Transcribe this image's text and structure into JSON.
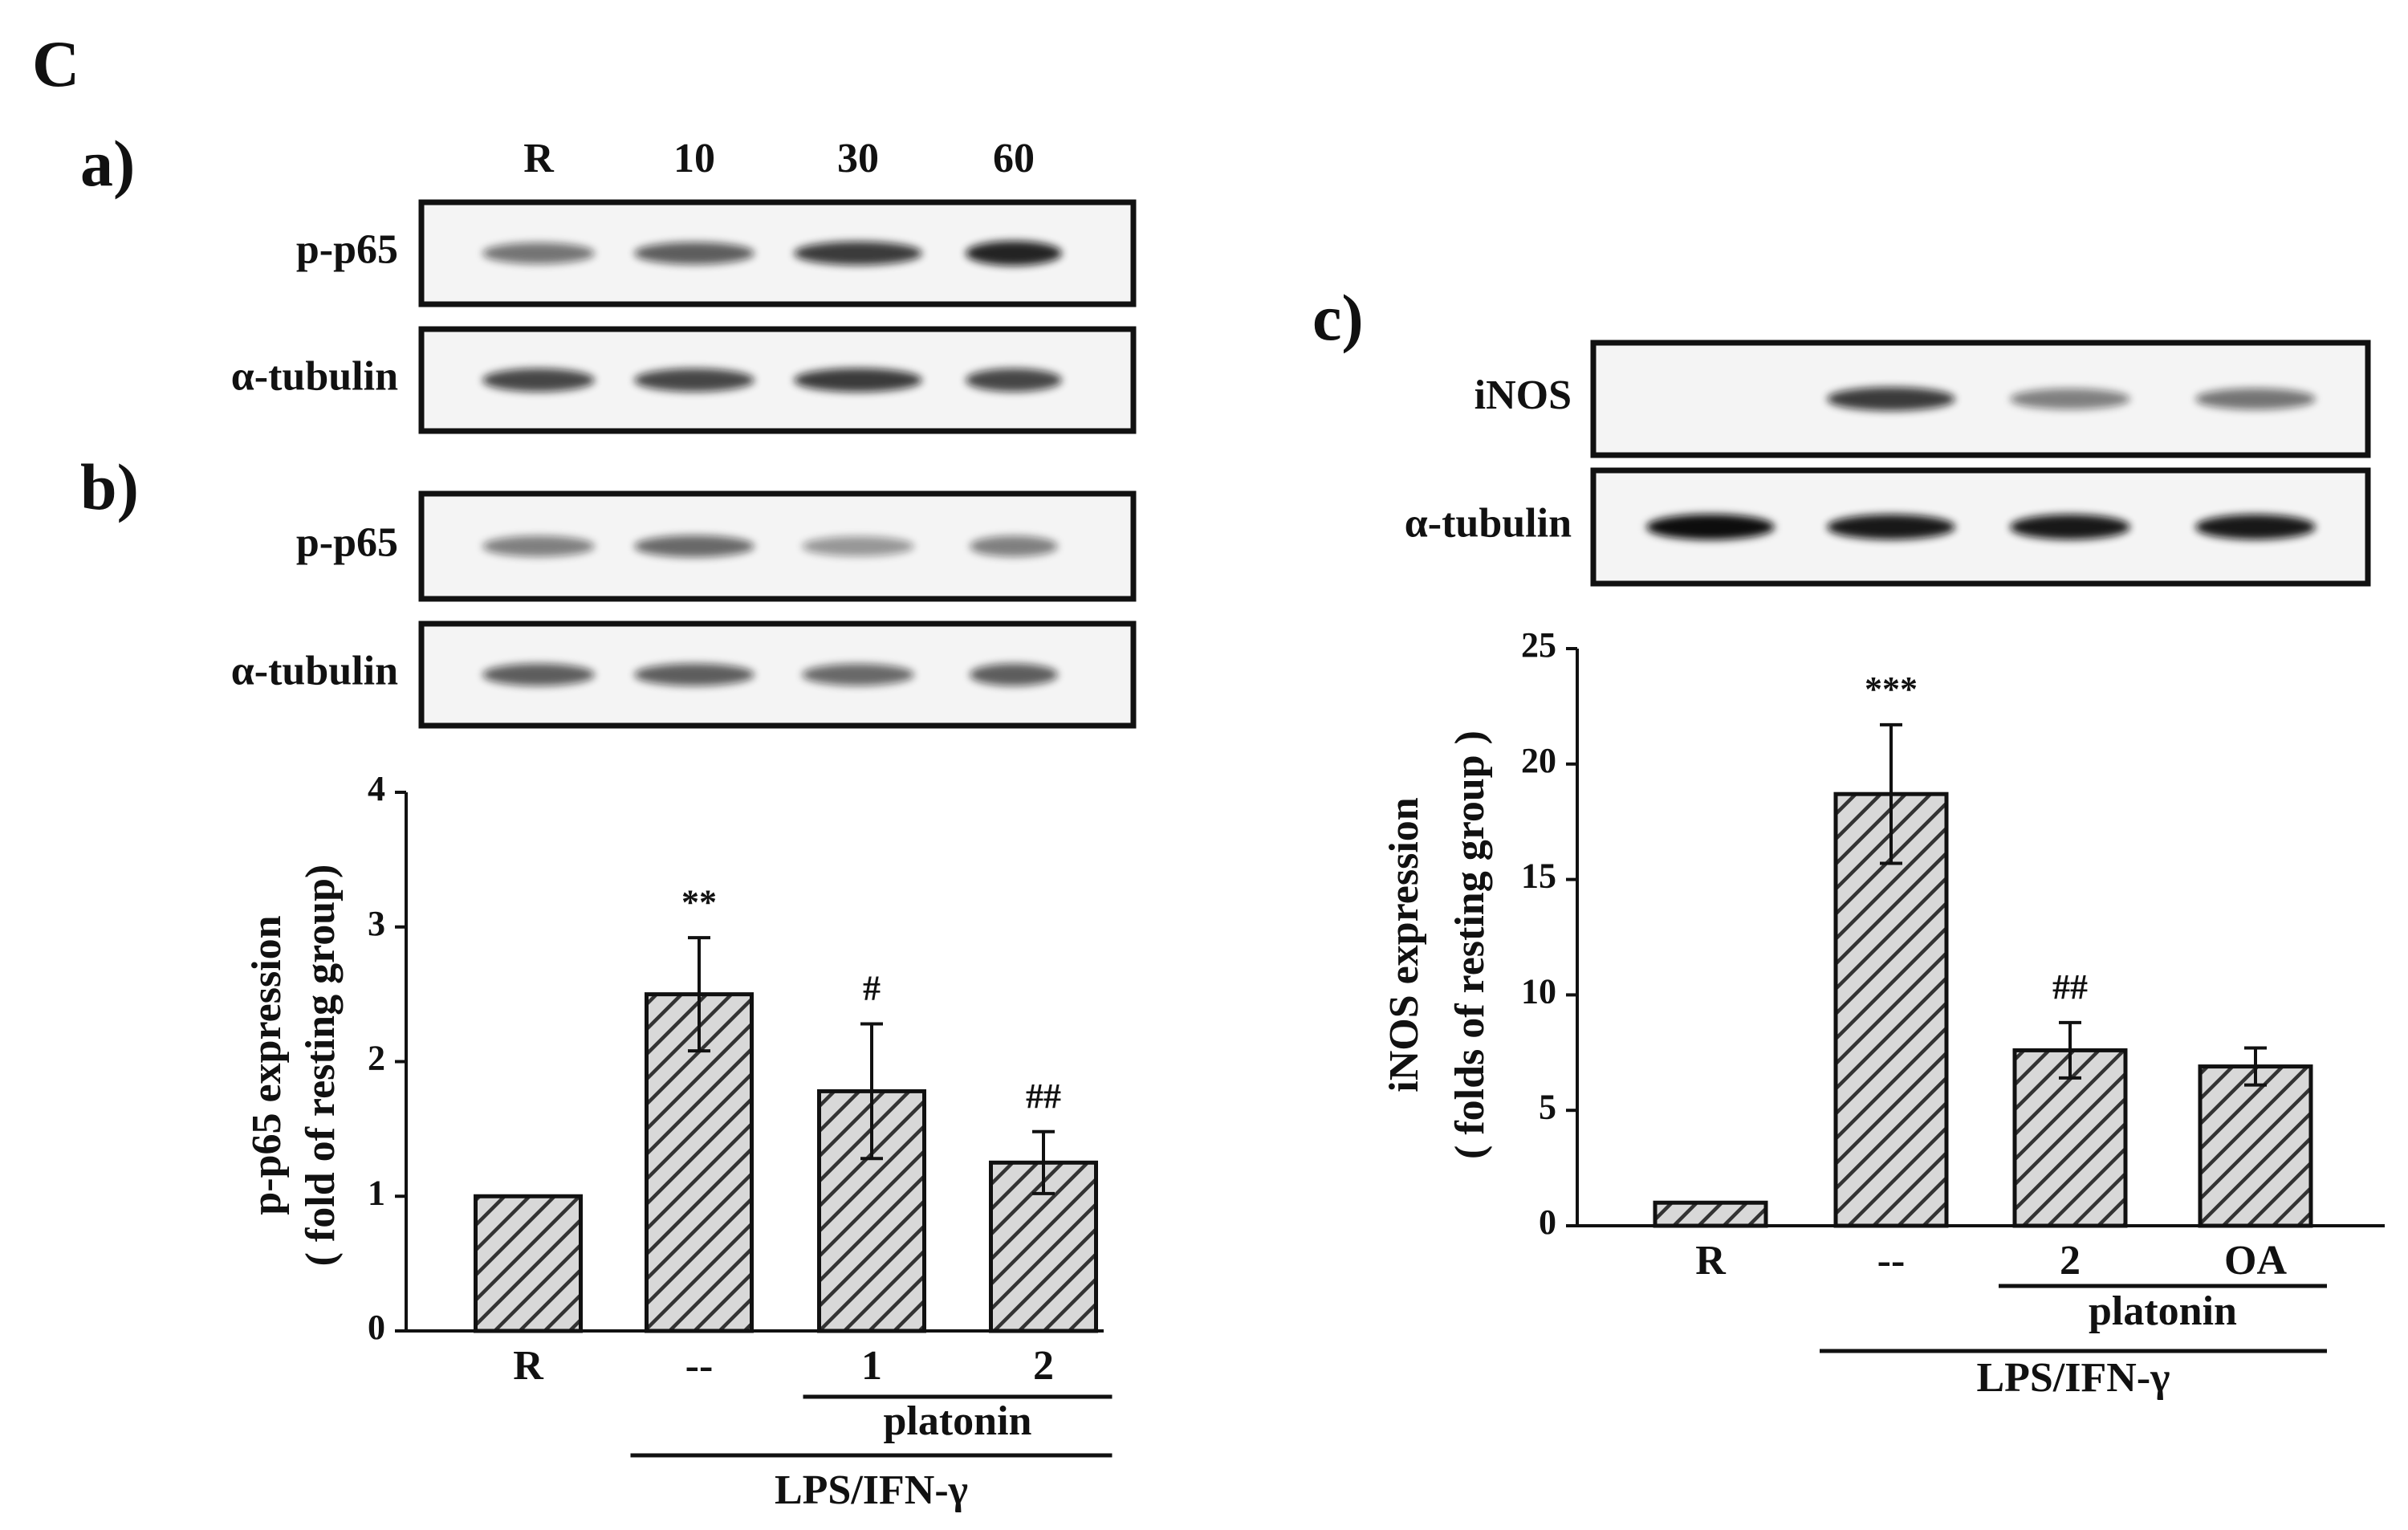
{
  "panel_label": "C",
  "blots": [
    {
      "label": "a)",
      "lanes": [
        "R",
        "10",
        "30",
        "60"
      ],
      "rows": [
        "p-p65",
        "α-tubulin"
      ]
    },
    {
      "label": "b)",
      "rows": [
        "p-p65",
        "α-tubulin"
      ]
    },
    {
      "label": "c)",
      "rows": [
        "iNOS",
        "α-tubulin"
      ]
    }
  ],
  "chart_data": [
    {
      "type": "bar",
      "ylabel": [
        "p-p65 expression",
        "( fold of resting group)"
      ],
      "categories": [
        "R",
        "--",
        "1",
        "2"
      ],
      "values": [
        1,
        2.5,
        1.78,
        1.25
      ],
      "errors": [
        null,
        0.42,
        0.5,
        0.23
      ],
      "annotations": [
        null,
        "**",
        "#",
        "##"
      ],
      "groups": [
        "platonin",
        "LPS/IFN-γ"
      ],
      "color": "#333333",
      "ylim": [
        0,
        4
      ],
      "yticks": [
        0,
        1,
        2,
        3,
        4
      ]
    },
    {
      "type": "bar",
      "ylabel": [
        "iNOS expression",
        "( folds of resting group )"
      ],
      "categories": [
        "R",
        "--",
        "2",
        "OA"
      ],
      "values": [
        1,
        18.7,
        7.6,
        6.9
      ],
      "errors": [
        null,
        3,
        1.2,
        0.8
      ],
      "annotations": [
        null,
        "***",
        "##",
        null
      ],
      "groups": [
        "platonin",
        "LPS/IFN-γ"
      ],
      "color": "#333333",
      "ylim": [
        0,
        25
      ],
      "yticks": [
        0,
        5,
        10,
        15,
        20,
        25
      ]
    }
  ]
}
